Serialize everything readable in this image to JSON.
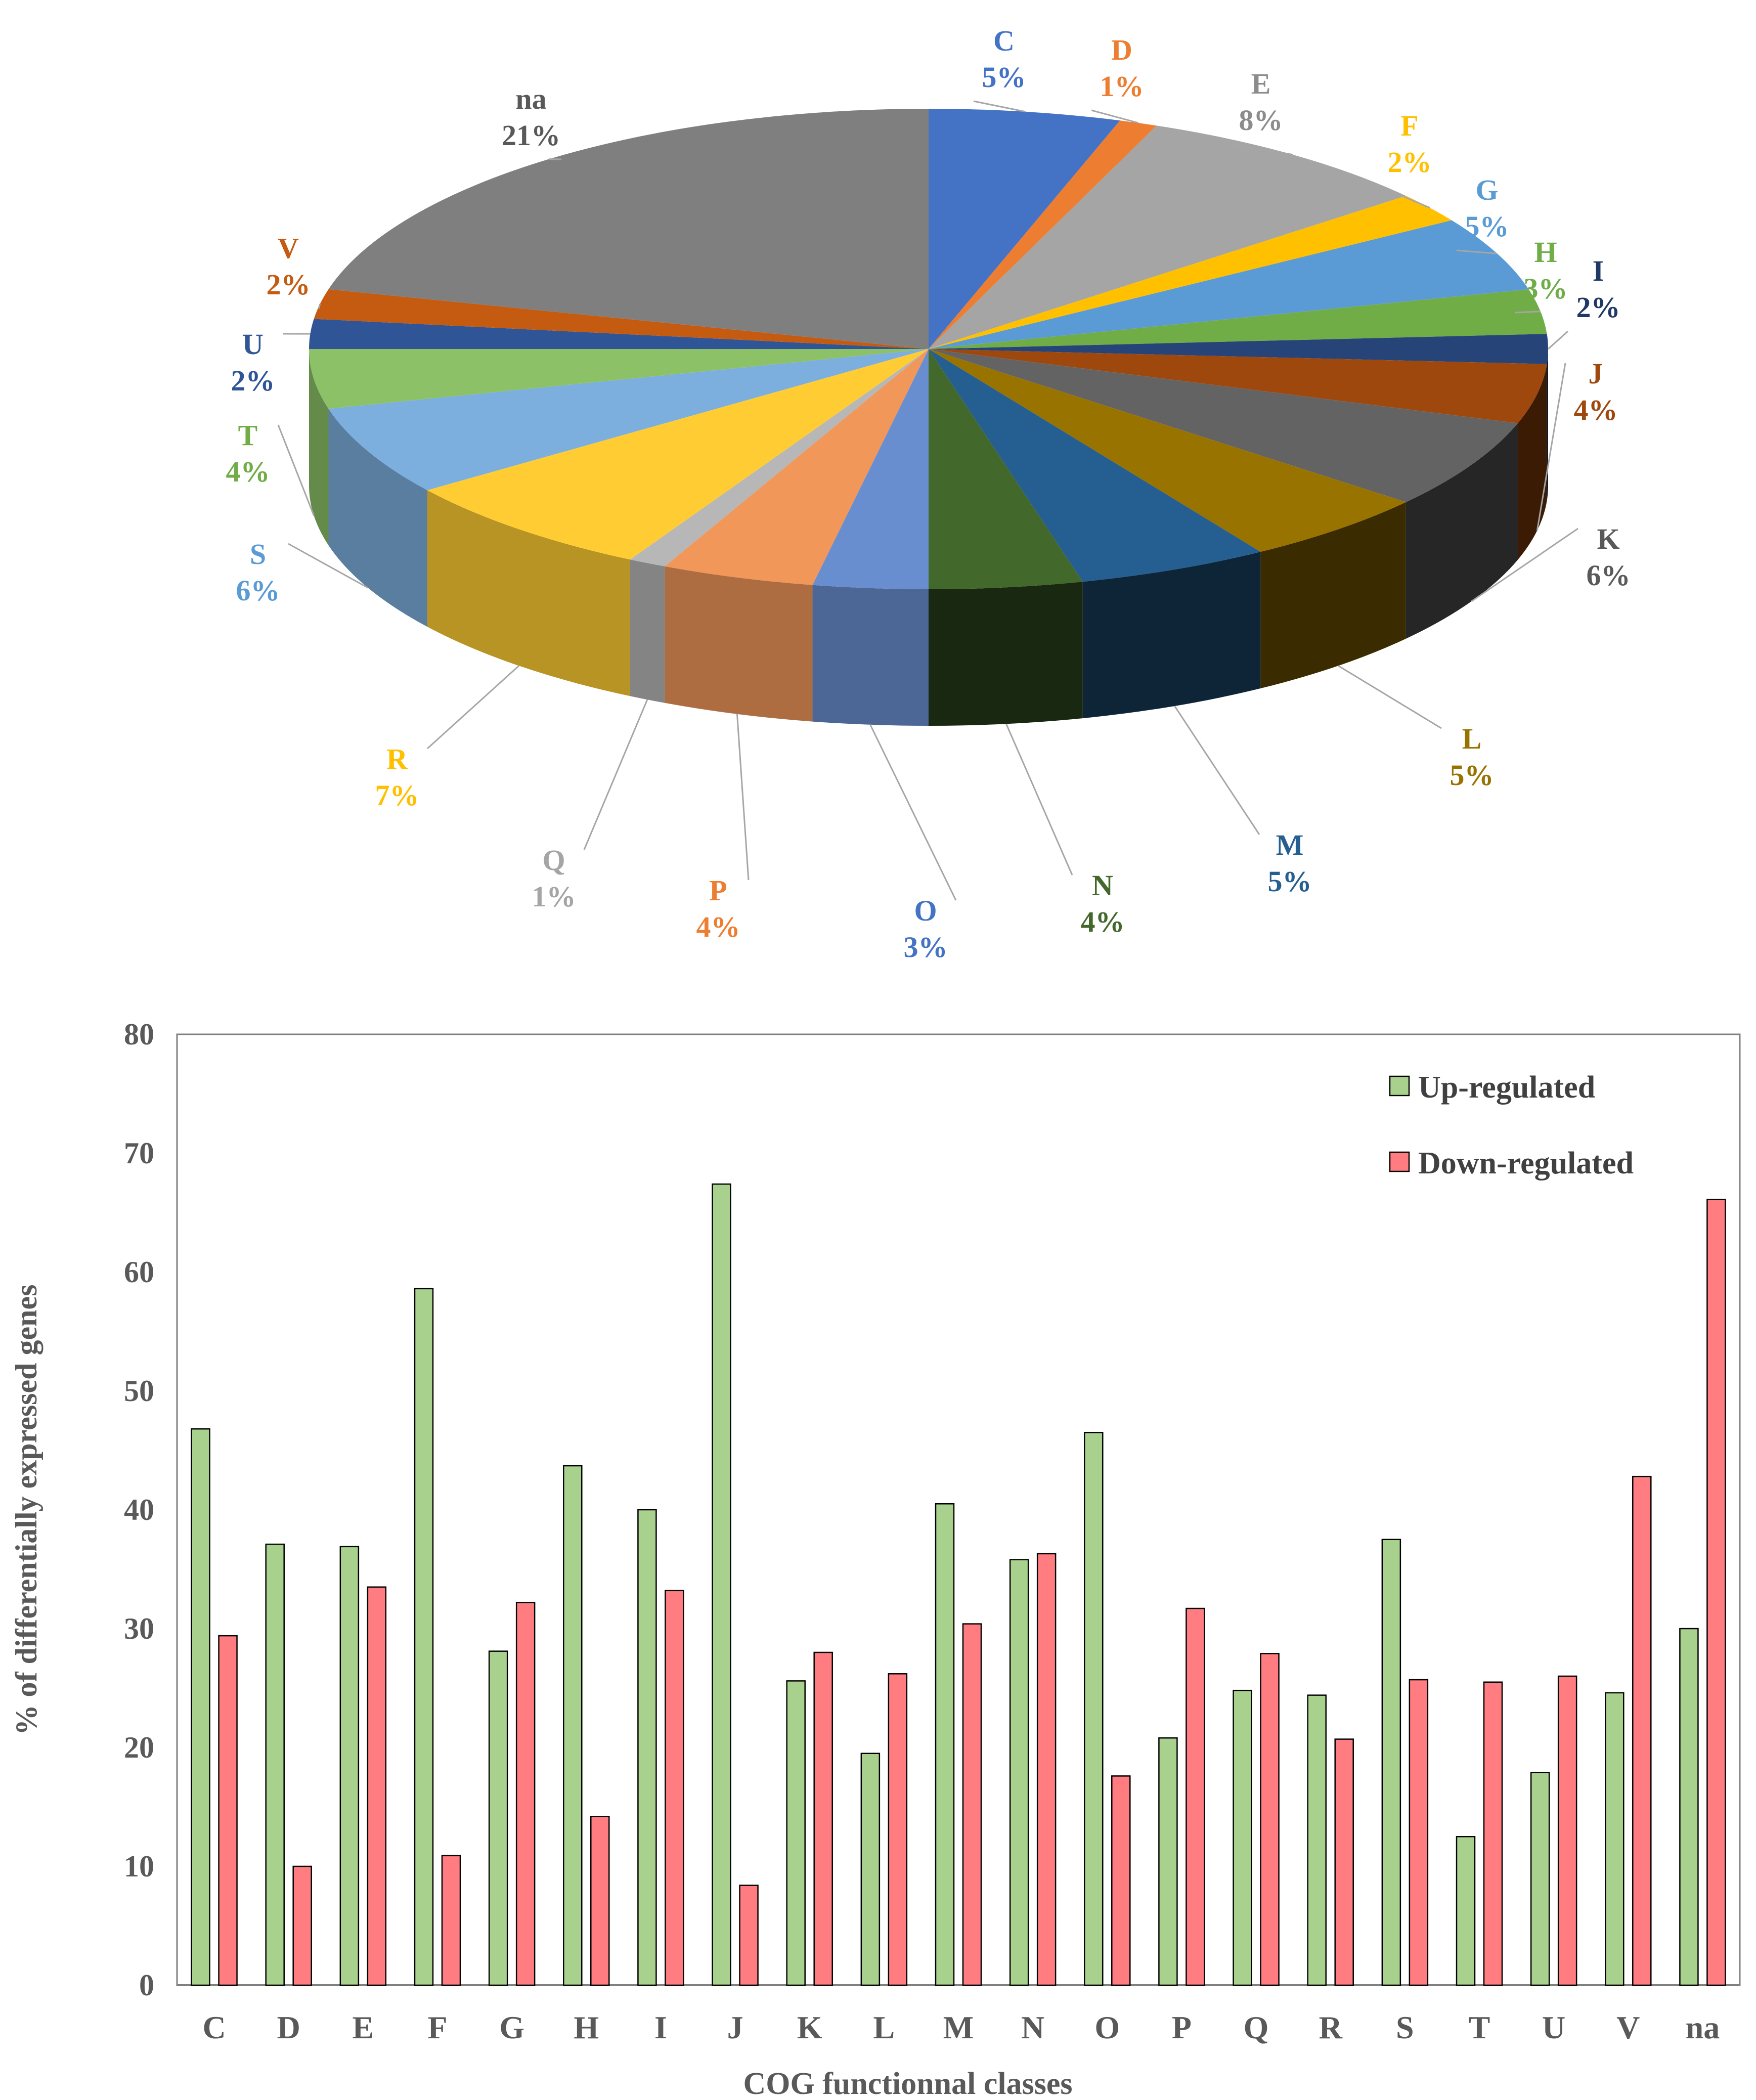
{
  "chart_data": [
    {
      "type": "pie",
      "title": "",
      "slices": [
        {
          "label": "C",
          "value": 5,
          "text": "5%",
          "color": "#4472C4"
        },
        {
          "label": "D",
          "value": 1,
          "text": "1%",
          "color": "#ED7D31"
        },
        {
          "label": "E",
          "value": 8,
          "text": "8%",
          "color": "#A5A5A5"
        },
        {
          "label": "F",
          "value": 2,
          "text": "2%",
          "color": "#FFC000"
        },
        {
          "label": "G",
          "value": 5,
          "text": "5%",
          "color": "#5B9BD5"
        },
        {
          "label": "H",
          "value": 3,
          "text": "3%",
          "color": "#70AD47"
        },
        {
          "label": "I",
          "value": 2,
          "text": "2%",
          "color": "#264478"
        },
        {
          "label": "J",
          "value": 4,
          "text": "4%",
          "color": "#9E480E"
        },
        {
          "label": "K",
          "value": 6,
          "text": "6%",
          "color": "#636363"
        },
        {
          "label": "L",
          "value": 5,
          "text": "5%",
          "color": "#997300"
        },
        {
          "label": "M",
          "value": 5,
          "text": "5%",
          "color": "#255E91"
        },
        {
          "label": "N",
          "value": 4,
          "text": "4%",
          "color": "#43682B"
        },
        {
          "label": "O",
          "value": 3,
          "text": "3%",
          "color": "#698ED0"
        },
        {
          "label": "P",
          "value": 4,
          "text": "4%",
          "color": "#F1975A"
        },
        {
          "label": "Q",
          "value": 1,
          "text": "1%",
          "color": "#B7B7B7"
        },
        {
          "label": "R",
          "value": 7,
          "text": "7%",
          "color": "#FFCD33"
        },
        {
          "label": "S",
          "value": 6,
          "text": "6%",
          "color": "#7CAFDD"
        },
        {
          "label": "T",
          "value": 4,
          "text": "4%",
          "color": "#8CC168"
        },
        {
          "label": "U",
          "value": 2,
          "text": "2%",
          "color": "#2F5597"
        },
        {
          "label": "V",
          "value": 2,
          "text": "2%",
          "color": "#C55A11"
        },
        {
          "label": "na",
          "value": 21,
          "text": "21%",
          "color": "#7F7F7F"
        }
      ]
    },
    {
      "type": "bar",
      "title": "",
      "xlabel": "COG functionnal classes",
      "ylabel": "% of differentially expressed genes",
      "ylim": [
        0,
        80
      ],
      "yticks": [
        "0",
        "10",
        "20",
        "30",
        "40",
        "50",
        "60",
        "70",
        "80"
      ],
      "categories": [
        "C",
        "D",
        "E",
        "F",
        "G",
        "H",
        "I",
        "J",
        "K",
        "L",
        "M",
        "N",
        "O",
        "P",
        "Q",
        "R",
        "S",
        "T",
        "U",
        "V",
        "na"
      ],
      "legend_position": "top-right",
      "series": [
        {
          "name": "Up-regulated",
          "color": "#A9D18E",
          "values": [
            46.8,
            37.1,
            36.9,
            58.6,
            28.1,
            43.7,
            40.0,
            67.4,
            25.6,
            19.5,
            40.5,
            35.8,
            46.5,
            20.8,
            24.8,
            24.4,
            37.5,
            12.5,
            17.9,
            24.6,
            30.0
          ]
        },
        {
          "name": "Down-regulated",
          "color": "#FF7C80",
          "values": [
            29.4,
            10.0,
            33.5,
            10.9,
            32.2,
            14.2,
            33.2,
            8.4,
            28.0,
            26.2,
            30.4,
            36.3,
            17.6,
            31.7,
            27.9,
            20.7,
            25.7,
            25.5,
            26.0,
            42.8,
            66.1
          ]
        }
      ]
    }
  ]
}
